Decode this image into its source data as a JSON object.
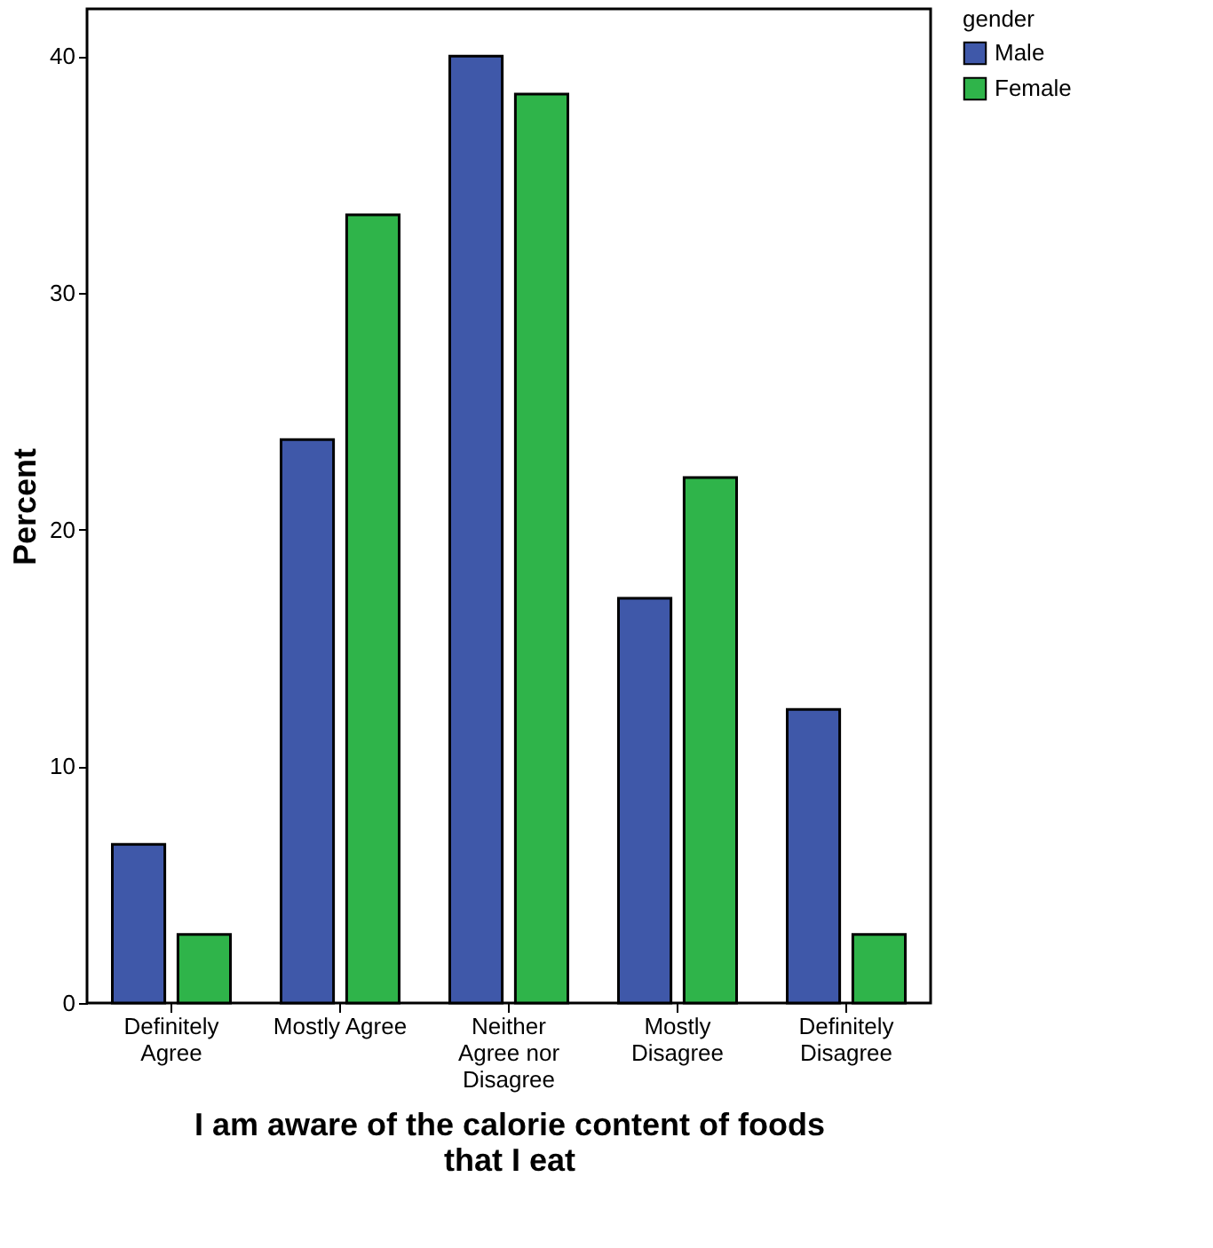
{
  "chart_data": {
    "type": "bar",
    "xlabel": "I am aware of the calorie content of foods that I eat",
    "ylabel": "Percent",
    "legend_title": "gender",
    "categories": [
      "Definitely Agree",
      "Mostly Agree",
      "Neither Agree nor Disagree",
      "Mostly Disagree",
      "Definitely Disagree"
    ],
    "series": [
      {
        "name": "Male",
        "color": "#3f58a9",
        "values": [
          6.7,
          23.8,
          40.0,
          17.1,
          12.4
        ]
      },
      {
        "name": "Female",
        "color": "#2fb44a",
        "values": [
          2.9,
          33.3,
          38.4,
          22.2,
          2.9
        ]
      }
    ],
    "ylim": [
      0,
      42
    ],
    "yticks": [
      0,
      10,
      20,
      30,
      40
    ],
    "grid": false,
    "legend": "top right"
  }
}
